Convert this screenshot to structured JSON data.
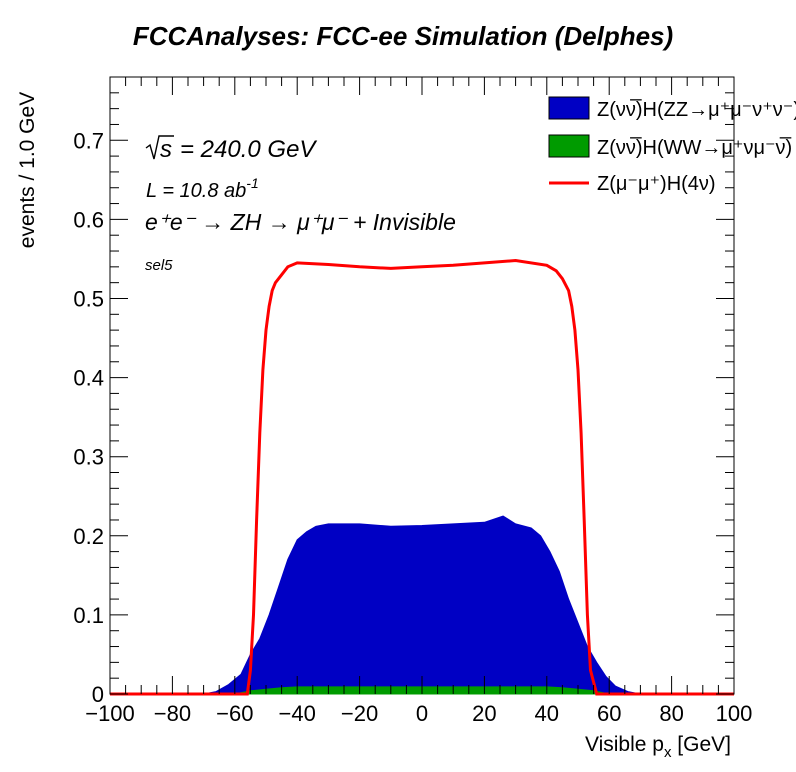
{
  "chart_data": {
    "type": "histogram",
    "title": "FCCAnalyses: FCC-ee Simulation (Delphes)",
    "xlabel_main": "Visible p",
    "xlabel_sub": "x",
    "xlabel_unit": " [GeV]",
    "ylabel": "events / 1.0 GeV",
    "xlim": [
      -100,
      100
    ],
    "ylim": [
      0,
      0.78
    ],
    "xticks": [
      -100,
      -80,
      -60,
      -40,
      -20,
      0,
      20,
      40,
      60,
      80,
      100
    ],
    "xtick_labels": [
      "−100",
      "−80",
      "−60",
      "−40",
      "−20",
      "0",
      "20",
      "40",
      "60",
      "80",
      "100"
    ],
    "yticks": [
      0,
      0.1,
      0.2,
      0.3,
      0.4,
      0.5,
      0.6,
      0.7
    ],
    "ytick_labels": [
      "0",
      "0.1",
      "0.2",
      "0.3",
      "0.4",
      "0.5",
      "0.6",
      "0.7"
    ],
    "grid": false,
    "legend_position": "top-right",
    "annotations": {
      "sqrt_s": "= 240.0 GeV",
      "lumi": "L = 10.8 ab",
      "lumi_exp": "-1",
      "process": "e⁺e⁻ → ZH → μ⁺μ⁻ + Invisible",
      "selection": "sel5"
    },
    "series": [
      {
        "name": "Z(νν̅)H(ZZ→μ⁺μ⁻ν⁺ν⁻)",
        "style": "filled",
        "color": "#0000c4",
        "points": [
          [
            -70,
            0
          ],
          [
            -66,
            0.003
          ],
          [
            -62,
            0.012
          ],
          [
            -58,
            0.025
          ],
          [
            -55,
            0.05
          ],
          [
            -52,
            0.07
          ],
          [
            -49,
            0.1
          ],
          [
            -46,
            0.135
          ],
          [
            -43,
            0.17
          ],
          [
            -40,
            0.195
          ],
          [
            -37,
            0.205
          ],
          [
            -34,
            0.212
          ],
          [
            -30,
            0.215
          ],
          [
            -20,
            0.215
          ],
          [
            -10,
            0.212
          ],
          [
            0,
            0.213
          ],
          [
            10,
            0.215
          ],
          [
            20,
            0.217
          ],
          [
            26,
            0.225
          ],
          [
            30,
            0.215
          ],
          [
            35,
            0.21
          ],
          [
            38,
            0.2
          ],
          [
            41,
            0.18
          ],
          [
            44,
            0.155
          ],
          [
            47,
            0.12
          ],
          [
            50,
            0.09
          ],
          [
            53,
            0.06
          ],
          [
            56,
            0.04
          ],
          [
            59,
            0.022
          ],
          [
            62,
            0.01
          ],
          [
            66,
            0.003
          ],
          [
            70,
            0
          ]
        ]
      },
      {
        "name": "Z(νν̅)H(WW→μ⁺νμ⁻ν̅)",
        "style": "filled",
        "color": "#009b00",
        "points": [
          [
            -60,
            0
          ],
          [
            -55,
            0.004
          ],
          [
            -50,
            0.006
          ],
          [
            -45,
            0.008
          ],
          [
            -40,
            0.009
          ],
          [
            0,
            0.009
          ],
          [
            40,
            0.009
          ],
          [
            45,
            0.008
          ],
          [
            50,
            0.006
          ],
          [
            55,
            0.004
          ],
          [
            60,
            0
          ]
        ]
      },
      {
        "name": "Z(μ⁻μ⁺)H(4ν)",
        "style": "line",
        "color": "#ff0000",
        "points": [
          [
            -100,
            0
          ],
          [
            -56,
            0
          ],
          [
            -55,
            0.03
          ],
          [
            -54,
            0.1
          ],
          [
            -53,
            0.22
          ],
          [
            -52,
            0.33
          ],
          [
            -51,
            0.41
          ],
          [
            -50,
            0.46
          ],
          [
            -49,
            0.49
          ],
          [
            -48,
            0.51
          ],
          [
            -47,
            0.52
          ],
          [
            -45,
            0.53
          ],
          [
            -43,
            0.54
          ],
          [
            -40,
            0.545
          ],
          [
            -30,
            0.543
          ],
          [
            -20,
            0.54
          ],
          [
            -10,
            0.538
          ],
          [
            0,
            0.54
          ],
          [
            10,
            0.542
          ],
          [
            20,
            0.545
          ],
          [
            30,
            0.548
          ],
          [
            40,
            0.542
          ],
          [
            43,
            0.535
          ],
          [
            45,
            0.525
          ],
          [
            47,
            0.51
          ],
          [
            48,
            0.49
          ],
          [
            49,
            0.46
          ],
          [
            50,
            0.41
          ],
          [
            51,
            0.33
          ],
          [
            52,
            0.22
          ],
          [
            53,
            0.1
          ],
          [
            54,
            0.03
          ],
          [
            56,
            0
          ],
          [
            100,
            0
          ]
        ]
      }
    ],
    "legend_colors": {
      "zz": "#0000c4",
      "ww": "#009b00",
      "mumu": "#ff0000"
    }
  }
}
